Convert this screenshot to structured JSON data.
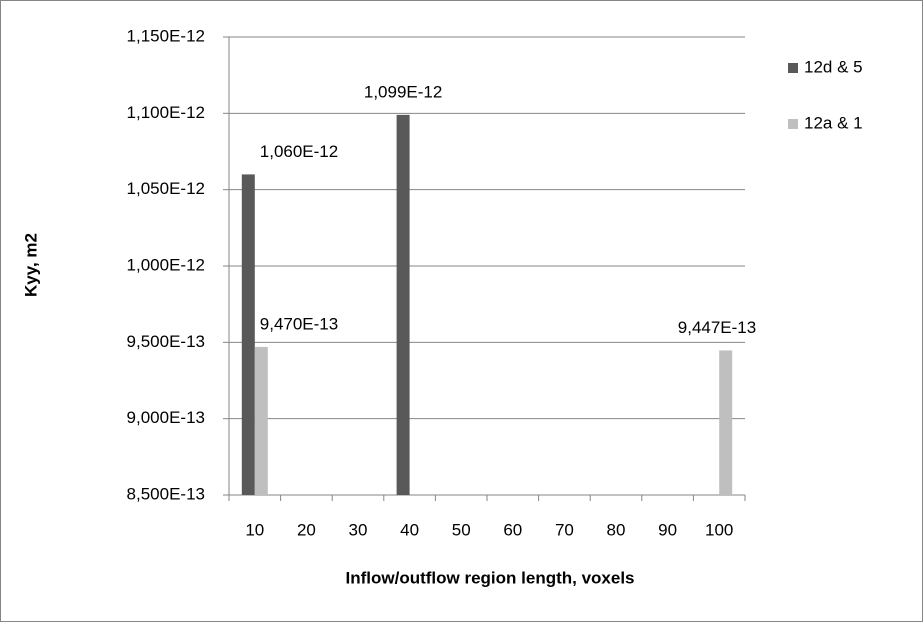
{
  "chart_data": {
    "type": "bar",
    "y_label": "Kyy, m2",
    "x_label": "Inflow/outflow  region length, voxels",
    "categories": [
      10,
      20,
      30,
      40,
      50,
      60,
      70,
      80,
      90,
      100
    ],
    "series": [
      {
        "name": "12d & 5",
        "color": "#595959",
        "values": [
          1.06e-12,
          null,
          null,
          1.099e-12,
          null,
          null,
          null,
          null,
          null,
          null
        ],
        "value_labels": [
          "1,060E-12",
          null,
          null,
          "1,099E-12",
          null,
          null,
          null,
          null,
          null,
          null
        ]
      },
      {
        "name": "12a & 1",
        "color": "#bfbfbf",
        "values": [
          9.47e-13,
          null,
          null,
          null,
          null,
          null,
          null,
          null,
          null,
          9.447e-13
        ],
        "value_labels": [
          "9,470E-13",
          null,
          null,
          null,
          null,
          null,
          null,
          null,
          null,
          "9,447E-13"
        ]
      }
    ],
    "ylim": [
      8.5e-13,
      1.15e-12
    ],
    "yticks": [
      {
        "value": 8.5e-13,
        "label": "8,500E-13"
      },
      {
        "value": 9e-13,
        "label": "9,000E-13"
      },
      {
        "value": 9.5e-13,
        "label": "9,500E-13"
      },
      {
        "value": 1e-12,
        "label": "1,000E-12"
      },
      {
        "value": 1.05e-12,
        "label": "1,050E-12"
      },
      {
        "value": 1.1e-12,
        "label": "1,100E-12"
      },
      {
        "value": 1.15e-12,
        "label": "1,150E-12"
      }
    ],
    "grid": true,
    "legend": "right"
  }
}
